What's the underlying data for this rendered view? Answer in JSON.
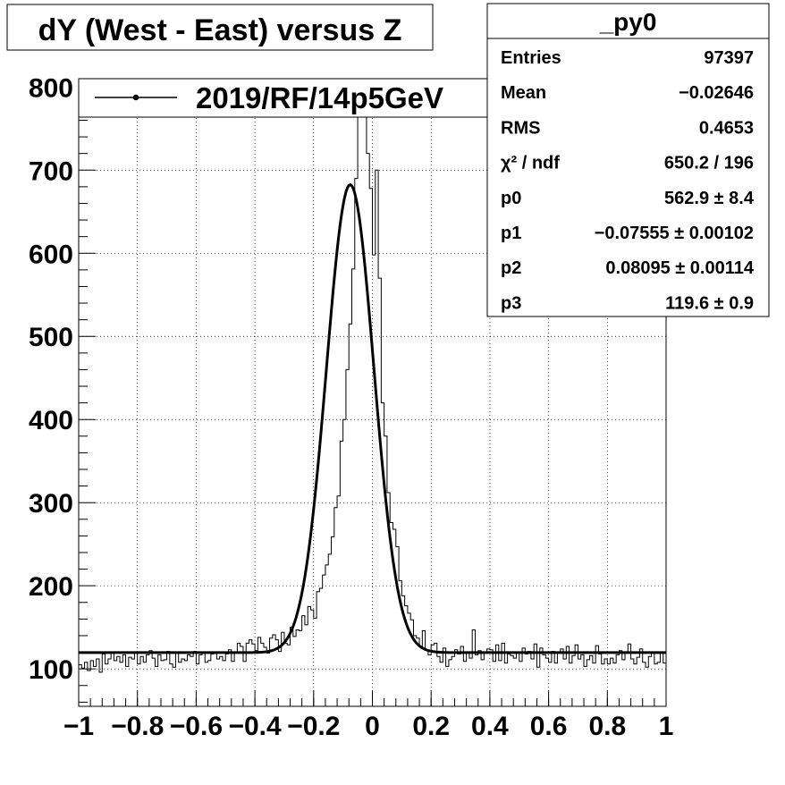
{
  "chart_data": {
    "type": "histogram",
    "title": "dY (West - East) versus Z",
    "xlabel": "",
    "ylabel": "",
    "xlim": [
      -1,
      1
    ],
    "ylim": [
      55,
      810
    ],
    "x_ticks": [
      "−1",
      "−0.8",
      "−0.6",
      "−0.4",
      "−0.2",
      "0",
      "0.2",
      "0.4",
      "0.6",
      "0.8",
      "1"
    ],
    "x_tick_values": [
      -1,
      -0.8,
      -0.6,
      -0.4,
      -0.2,
      0,
      0.2,
      0.4,
      0.6,
      0.8,
      1
    ],
    "y_ticks": [
      "100",
      "200",
      "300",
      "400",
      "500",
      "600",
      "700",
      "800"
    ],
    "y_tick_values": [
      100,
      200,
      300,
      400,
      500,
      600,
      700,
      800
    ],
    "grid": true,
    "legend": {
      "position": "top",
      "entries": [
        "2019/RF/14p5GeV"
      ]
    },
    "stats_box": {
      "title": "_py0",
      "rows": [
        {
          "label": "Entries",
          "value": "97397"
        },
        {
          "label": "Mean",
          "value": "−0.02646"
        },
        {
          "label": "RMS",
          "value": "0.4653"
        },
        {
          "label": "χ² / ndf",
          "value": "650.2 / 196"
        },
        {
          "label": "p0",
          "value": "562.9 ± 8.4"
        },
        {
          "label": "p1",
          "value": "−0.07555 ± 0.00102"
        },
        {
          "label": "p2",
          "value": "0.08095 ± 0.00114"
        },
        {
          "label": "p3",
          "value": "119.6 ± 0.9"
        }
      ]
    },
    "fit": {
      "function": "gaus + const",
      "p0": 562.9,
      "p1": -0.07555,
      "p2": 0.08095,
      "p3": 119.6
    },
    "histogram": {
      "x_min": -1,
      "bin_width": 0.01,
      "values": [
        105,
        101,
        108,
        98,
        110,
        103,
        112,
        96,
        118,
        106,
        112,
        120,
        110,
        115,
        108,
        117,
        103,
        114,
        112,
        119,
        106,
        115,
        108,
        117,
        122,
        113,
        103,
        117,
        110,
        111,
        121,
        106,
        102,
        119,
        108,
        112,
        110,
        117,
        115,
        121,
        106,
        117,
        119,
        108,
        110,
        118,
        120,
        112,
        115,
        110,
        118,
        123,
        109,
        120,
        131,
        127,
        109,
        131,
        135,
        130,
        122,
        138,
        131,
        126,
        119,
        137,
        141,
        135,
        121,
        144,
        131,
        129,
        150,
        139,
        147,
        146,
        164,
        153,
        175,
        171,
        161,
        193,
        197,
        213,
        225,
        238,
        259,
        294,
        308,
        374,
        400,
        460,
        515,
        581,
        690,
        785,
        800,
        770,
        720,
        678,
        598,
        700,
        570,
        420,
        380,
        312,
        276,
        268,
        247,
        206,
        188,
        176,
        167,
        159,
        140,
        137,
        127,
        146,
        123,
        117,
        129,
        131,
        115,
        108,
        125,
        103,
        111,
        115,
        123,
        118,
        127,
        109,
        119,
        113,
        147,
        117,
        122,
        111,
        119,
        124,
        123,
        109,
        129,
        110,
        131,
        107,
        118,
        116,
        113,
        120,
        109,
        125,
        118,
        121,
        112,
        130,
        102,
        125,
        117,
        113,
        108,
        121,
        107,
        119,
        124,
        112,
        127,
        107,
        116,
        129,
        112,
        117,
        103,
        111,
        116,
        107,
        128,
        118,
        106,
        112,
        106,
        113,
        107,
        117,
        122,
        111,
        119,
        130,
        112,
        106,
        114,
        124,
        108,
        102,
        115,
        119,
        106,
        108,
        119,
        107
      ]
    }
  }
}
